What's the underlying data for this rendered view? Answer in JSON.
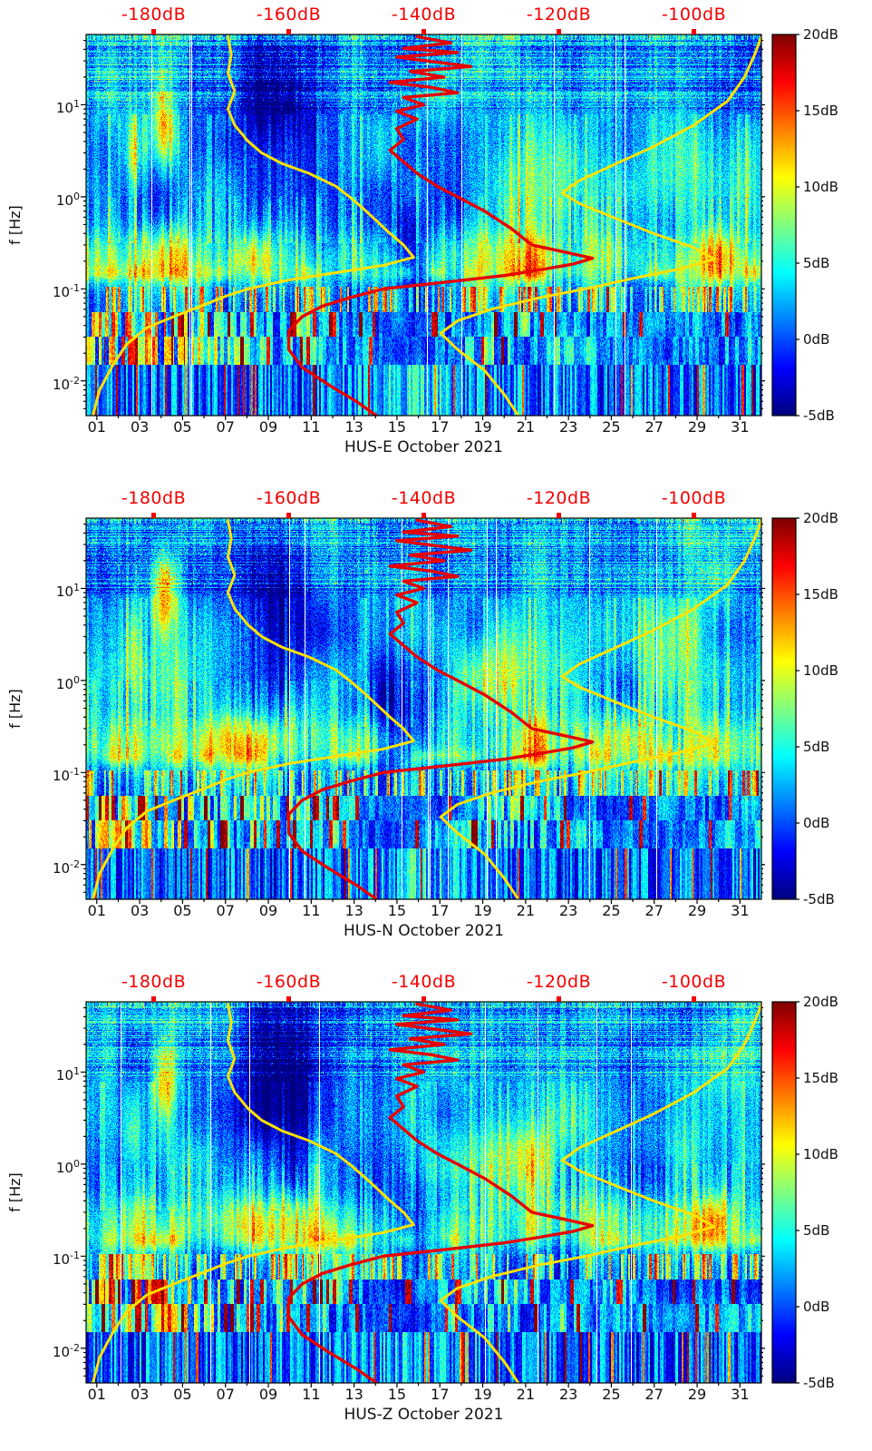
{
  "chart_data": {
    "type": "heatmap",
    "subtype": "seismic-noise-spectrogram-with-noise-model-curves",
    "month_label": "October 2021",
    "shared": {
      "x_axis": {
        "tick_labels": [
          "01",
          "03",
          "05",
          "07",
          "09",
          "11",
          "13",
          "15",
          "17",
          "19",
          "21",
          "23",
          "25",
          "27",
          "29",
          "31"
        ],
        "tick_values": [
          1,
          3,
          5,
          7,
          9,
          11,
          13,
          15,
          17,
          19,
          21,
          23,
          25,
          27,
          29,
          31
        ],
        "range_days": [
          0.5,
          32
        ]
      },
      "y_axis": {
        "label": "f [Hz]",
        "scale": "log10",
        "base": "10",
        "tick_exponents": [
          1,
          0,
          -1,
          -2
        ],
        "range_hz": [
          0.0042,
          58
        ]
      },
      "color_axis": {
        "colormap": "jet",
        "range_db": [
          -5,
          20
        ],
        "tick_labels": [
          "20dB",
          "15dB",
          "10dB",
          "5dB",
          "0dB",
          "-5dB"
        ],
        "tick_values": [
          20,
          15,
          10,
          5,
          0,
          -5
        ]
      },
      "top_db_axis": {
        "color": "#f40000",
        "labels": [
          "-180dB",
          "-160dB",
          "-140dB",
          "-120dB",
          "-100dB"
        ],
        "values_db": [
          -180,
          -160,
          -140,
          -120,
          -100
        ],
        "range_db": [
          -190,
          -90
        ]
      },
      "curves": [
        {
          "name": "low-noise-model",
          "color": "#ffe100",
          "width": 3,
          "points_db_hz": [
            [
              -169,
              55
            ],
            [
              -168.5,
              35
            ],
            [
              -169,
              22
            ],
            [
              -168,
              14
            ],
            [
              -169,
              9
            ],
            [
              -168,
              6
            ],
            [
              -166,
              4
            ],
            [
              -164,
              3
            ],
            [
              -161,
              2.3
            ],
            [
              -157,
              1.8
            ],
            [
              -153,
              1.3
            ],
            [
              -151,
              1.0
            ],
            [
              -149,
              0.75
            ],
            [
              -147,
              0.55
            ],
            [
              -145,
              0.4
            ],
            [
              -143,
              0.3
            ],
            [
              -141.5,
              0.22
            ],
            [
              -146,
              0.18
            ],
            [
              -153,
              0.15
            ],
            [
              -160,
              0.125
            ],
            [
              -166,
              0.1
            ],
            [
              -169,
              0.085
            ],
            [
              -173,
              0.065
            ],
            [
              -177,
              0.05
            ],
            [
              -181,
              0.038
            ],
            [
              -184,
              0.025
            ],
            [
              -186,
              0.015
            ],
            [
              -188,
              0.008
            ],
            [
              -189,
              0.0042
            ]
          ]
        },
        {
          "name": "high-noise-model",
          "color": "#ffe100",
          "width": 3,
          "points_db_hz": [
            [
              -90,
              55
            ],
            [
              -91,
              35
            ],
            [
              -92.5,
              20
            ],
            [
              -95,
              11
            ],
            [
              -100,
              6
            ],
            [
              -106,
              3.5
            ],
            [
              -112,
              2.2
            ],
            [
              -117,
              1.5
            ],
            [
              -119.5,
              1.1
            ],
            [
              -117,
              0.85
            ],
            [
              -112,
              0.6
            ],
            [
              -106,
              0.4
            ],
            [
              -100,
              0.28
            ],
            [
              -97,
              0.21
            ],
            [
              -102,
              0.165
            ],
            [
              -109,
              0.13
            ],
            [
              -116,
              0.1
            ],
            [
              -123,
              0.08
            ],
            [
              -130,
              0.06
            ],
            [
              -135,
              0.045
            ],
            [
              -137.5,
              0.033
            ],
            [
              -135,
              0.022
            ],
            [
              -131,
              0.013
            ],
            [
              -128,
              0.007
            ],
            [
              -126,
              0.0042
            ]
          ]
        },
        {
          "name": "median-spectrum",
          "color": "#e60000",
          "width": 3.4,
          "points_db_hz": [
            [
              -141,
              55
            ],
            [
              -136,
              47
            ],
            [
              -143,
              41
            ],
            [
              -135,
              37
            ],
            [
              -144,
              33
            ],
            [
              -138,
              29
            ],
            [
              -133,
              26
            ],
            [
              -142,
              23
            ],
            [
              -137,
              20
            ],
            [
              -145,
              17.5
            ],
            [
              -139,
              15.5
            ],
            [
              -135,
              13.5
            ],
            [
              -143,
              12
            ],
            [
              -140,
              10
            ],
            [
              -144,
              8.5
            ],
            [
              -141,
              7
            ],
            [
              -144,
              5.5
            ],
            [
              -143,
              4.2
            ],
            [
              -145,
              3.2
            ],
            [
              -143,
              2.4
            ],
            [
              -141,
              1.8
            ],
            [
              -138,
              1.3
            ],
            [
              -135,
              1.0
            ],
            [
              -131,
              0.7
            ],
            [
              -127,
              0.45
            ],
            [
              -124,
              0.3
            ],
            [
              -119,
              0.25
            ],
            [
              -115,
              0.215
            ],
            [
              -118,
              0.185
            ],
            [
              -123,
              0.16
            ],
            [
              -128,
              0.14
            ],
            [
              -136,
              0.12
            ],
            [
              -146,
              0.1
            ],
            [
              -151,
              0.08
            ],
            [
              -155,
              0.065
            ],
            [
              -158,
              0.05
            ],
            [
              -160,
              0.035
            ],
            [
              -160,
              0.022
            ],
            [
              -158,
              0.014
            ],
            [
              -154,
              0.009
            ],
            [
              -150,
              0.006
            ],
            [
              -147,
              0.0042
            ]
          ]
        }
      ]
    },
    "panels": [
      {
        "station_channel": "HUS-E",
        "title": "HUS-E October 2021",
        "texture_seed": 11
      },
      {
        "station_channel": "HUS-N",
        "title": "HUS-N October 2021",
        "texture_seed": 47
      },
      {
        "station_channel": "HUS-Z",
        "title": "HUS-Z October 2021",
        "texture_seed": 83
      }
    ]
  }
}
